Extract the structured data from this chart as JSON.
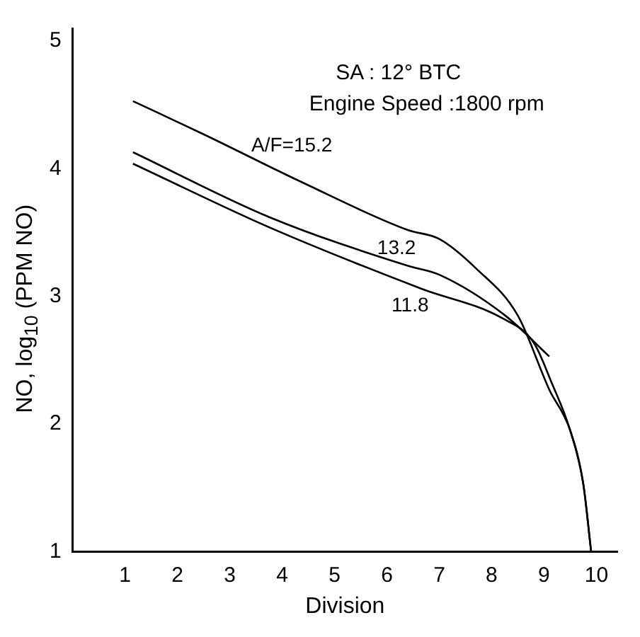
{
  "chart_data": {
    "type": "line",
    "xlabel": "Division",
    "ylabel": "NO, log$_{10}$ (PPM NO)",
    "annotations": [
      "SA : 12° BTC",
      "Engine Speed :1800 rpm"
    ],
    "series": [
      {
        "name": "A/F=15.2",
        "color": "#000000",
        "x": [
          1.15,
          2.5,
          4.4,
          6.4,
          7,
          7.7,
          8.5,
          9.1,
          9.5,
          9.75,
          9.9
        ],
        "values": [
          4.53,
          4.27,
          3.89,
          3.52,
          3.45,
          3.22,
          2.85,
          2.27,
          1.95,
          1.53,
          1.0
        ]
      },
      {
        "name": "13.2",
        "color": "#000000",
        "x": [
          1.15,
          3.76,
          6.4,
          7,
          8.26,
          9.1
        ],
        "values": [
          4.13,
          3.62,
          3.24,
          3.17,
          2.85,
          2.53
        ]
      },
      {
        "name": "11.8",
        "color": "#000000",
        "x": [
          1.15,
          3.76,
          6.66,
          8.2,
          8.8,
          9.15,
          9.5,
          9.75,
          9.9
        ],
        "values": [
          4.04,
          3.54,
          3.06,
          2.83,
          2.64,
          2.32,
          1.95,
          1.53,
          1.0
        ]
      }
    ],
    "xlim": [
      0,
      10.4
    ],
    "ylim": [
      1,
      5.1
    ],
    "xticks": [
      1,
      2,
      3,
      4,
      5,
      6,
      7,
      8,
      9,
      10
    ],
    "yticks": [
      1,
      2,
      3,
      4,
      5
    ],
    "grid": false,
    "legend": false,
    "marker": "none",
    "line_style": "solid"
  }
}
